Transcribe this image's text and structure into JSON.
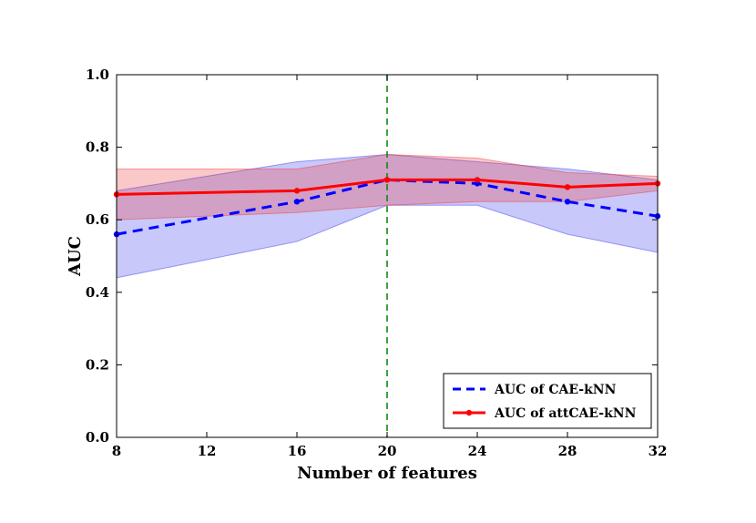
{
  "chart_data": {
    "type": "line",
    "title": "",
    "xlabel": "Number of features",
    "ylabel": "AUC",
    "xlim": [
      8,
      32
    ],
    "ylim": [
      0.0,
      1.0
    ],
    "x_ticks": [
      8,
      12,
      16,
      20,
      24,
      28,
      32
    ],
    "y_ticks": [
      0.0,
      0.2,
      0.4,
      0.6,
      0.8,
      1.0
    ],
    "x_tick_labels": [
      "8",
      "12",
      "16",
      "20",
      "24",
      "28",
      "32"
    ],
    "y_tick_labels": [
      "0.0",
      "0.2",
      "0.4",
      "0.6",
      "0.8",
      "1.0"
    ],
    "grid": false,
    "legend_position": "bottom-right",
    "reference_line": {
      "x": 20,
      "color": "#118811",
      "style": "dashed"
    },
    "x": [
      8,
      16,
      20,
      24,
      28,
      32
    ],
    "series": [
      {
        "name": "AUC of CAE-kNN",
        "color": "#0000ff",
        "band_color": "#3333ee",
        "style": "dashed",
        "values": [
          0.56,
          0.65,
          0.71,
          0.7,
          0.65,
          0.61
        ],
        "lower": [
          0.44,
          0.54,
          0.64,
          0.64,
          0.56,
          0.51
        ],
        "upper": [
          0.68,
          0.76,
          0.78,
          0.76,
          0.74,
          0.71
        ]
      },
      {
        "name": "AUC of attCAE-kNN",
        "color": "#ff0000",
        "band_color": "#ee3333",
        "style": "solid",
        "values": [
          0.67,
          0.68,
          0.71,
          0.71,
          0.69,
          0.7
        ],
        "lower": [
          0.6,
          0.62,
          0.64,
          0.65,
          0.65,
          0.68
        ],
        "upper": [
          0.74,
          0.74,
          0.78,
          0.77,
          0.73,
          0.72
        ]
      }
    ]
  }
}
